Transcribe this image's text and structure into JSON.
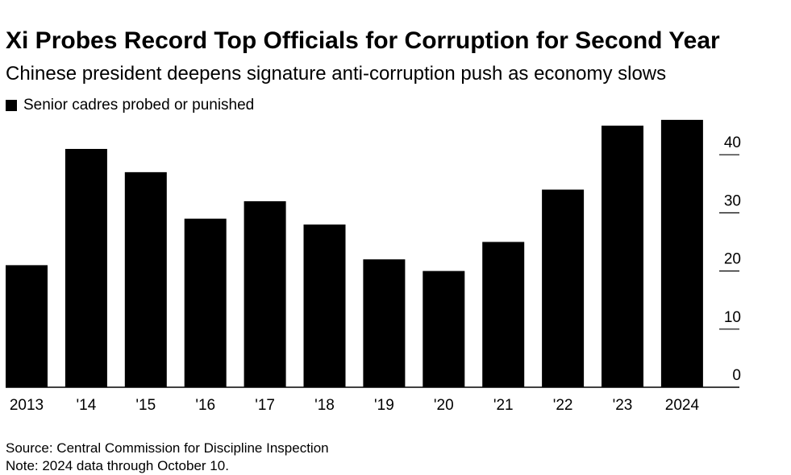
{
  "title": "Xi Probes Record Top Officials for Corruption for Second Year",
  "subtitle": "Chinese president deepens signature anti-corruption push as economy slows",
  "legend": {
    "label": "Senior cadres probed or punished",
    "swatch_color": "#000000"
  },
  "source": "Source: Central Commission for Discipline Inspection",
  "note": "Note: 2024 data through October 10.",
  "chart_data": {
    "type": "bar",
    "categories": [
      "2013",
      "'14",
      "'15",
      "'16",
      "'17",
      "'18",
      "'19",
      "'20",
      "'21",
      "'22",
      "'23",
      "2024"
    ],
    "series": [
      {
        "name": "Senior cadres probed or punished",
        "values": [
          21,
          41,
          37,
          29,
          32,
          28,
          22,
          20,
          25,
          34,
          45,
          46
        ],
        "color": "#000000"
      }
    ],
    "ylim": [
      0,
      46
    ],
    "yticks": [
      0,
      10,
      20,
      30,
      40
    ],
    "y_axis_position": "right",
    "grid": false,
    "legend_position": "top-left"
  }
}
